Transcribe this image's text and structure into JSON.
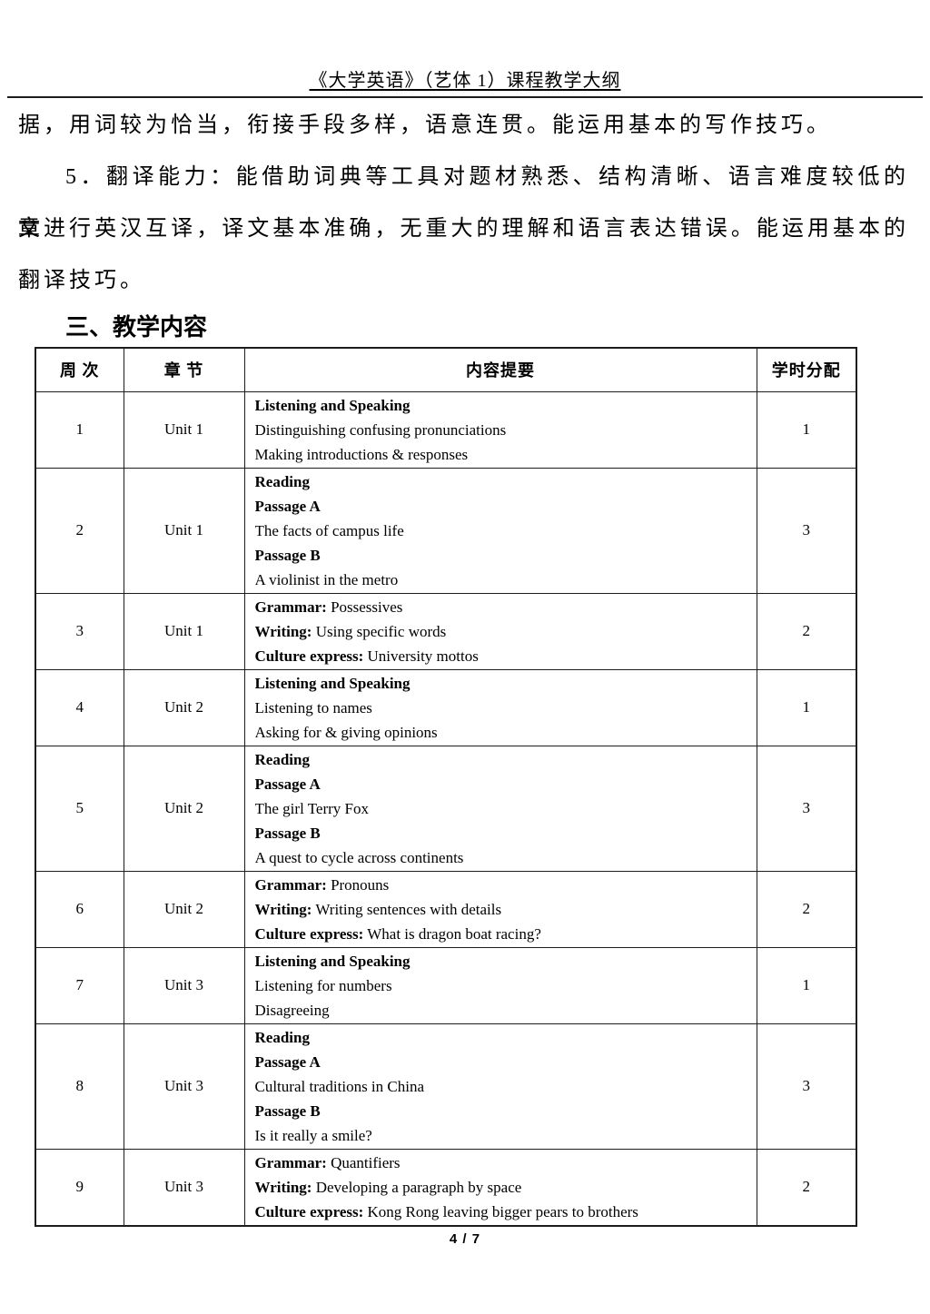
{
  "header": {
    "title": "《大学英语》（艺体 1）课程教学大纲"
  },
  "body": {
    "lines": [
      "据，用词较为恰当，衔接手段多样，语意连贯。能运用基本的写作技巧。",
      "5．翻译能力：能借助词典等工具对题材熟悉、结构清晰、语言难度较低的文",
      "章进行英汉互译，译文基本准确，无重大的理解和语言表达错误。能运用基本的",
      "翻译技巧。"
    ],
    "section_heading": "三、教学内容"
  },
  "table": {
    "headers": [
      "周 次",
      "章 节",
      "内容提要",
      "学时分配"
    ],
    "rows": [
      {
        "week": "1",
        "unit": "Unit 1",
        "hours": "1",
        "content": [
          {
            "b": "Listening and Speaking",
            "t": ""
          },
          {
            "b": "",
            "t": "Distinguishing confusing pronunciations"
          },
          {
            "b": "",
            "t": "Making introductions & responses"
          }
        ]
      },
      {
        "week": "2",
        "unit": "Unit 1",
        "hours": "3",
        "content": [
          {
            "b": "Reading",
            "t": ""
          },
          {
            "b": "Passage A",
            "t": ""
          },
          {
            "b": "",
            "t": "The facts of campus life"
          },
          {
            "b": "Passage B",
            "t": ""
          },
          {
            "b": "",
            "t": "A violinist in the metro"
          }
        ]
      },
      {
        "week": "3",
        "unit": "Unit 1",
        "hours": "2",
        "content": [
          {
            "b": "Grammar:",
            "t": " Possessives"
          },
          {
            "b": "Writing:",
            "t": " Using specific words"
          },
          {
            "b": "Culture express:",
            "t": " University mottos"
          }
        ]
      },
      {
        "week": "4",
        "unit": "Unit 2",
        "hours": "1",
        "content": [
          {
            "b": "Listening and Speaking",
            "t": ""
          },
          {
            "b": "",
            "t": "Listening to names"
          },
          {
            "b": "",
            "t": "Asking for & giving opinions"
          }
        ]
      },
      {
        "week": "5",
        "unit": "Unit 2",
        "hours": "3",
        "content": [
          {
            "b": "Reading",
            "t": ""
          },
          {
            "b": "Passage A",
            "t": ""
          },
          {
            "b": "",
            "t": "The girl Terry Fox"
          },
          {
            "b": "Passage B",
            "t": ""
          },
          {
            "b": "",
            "t": "A quest to cycle across continents"
          }
        ]
      },
      {
        "week": "6",
        "unit": "Unit 2",
        "hours": "2",
        "content": [
          {
            "b": "Grammar:",
            "t": " Pronouns"
          },
          {
            "b": "Writing:",
            "t": " Writing sentences with details"
          },
          {
            "b": "Culture express:",
            "t": " What is dragon boat racing?"
          }
        ]
      },
      {
        "week": "7",
        "unit": "Unit 3",
        "hours": "1",
        "content": [
          {
            "b": "Listening and Speaking",
            "t": ""
          },
          {
            "b": "",
            "t": "Listening for numbers"
          },
          {
            "b": "",
            "t": "Disagreeing"
          }
        ]
      },
      {
        "week": "8",
        "unit": "Unit 3",
        "hours": "3",
        "content": [
          {
            "b": "Reading",
            "t": ""
          },
          {
            "b": "Passage A",
            "t": ""
          },
          {
            "b": "",
            "t": "Cultural traditions in China"
          },
          {
            "b": "Passage B",
            "t": ""
          },
          {
            "b": "",
            "t": "Is it really a smile?"
          }
        ]
      },
      {
        "week": "9",
        "unit": "Unit 3",
        "hours": "2",
        "content": [
          {
            "b": "Grammar:",
            "t": " Quantifiers"
          },
          {
            "b": "Writing:",
            "t": " Developing a paragraph by space"
          },
          {
            "b": "Culture express:",
            "t": " Kong Rong leaving bigger pears to brothers"
          }
        ]
      }
    ]
  },
  "footer": {
    "page_number": "4 / 7"
  }
}
